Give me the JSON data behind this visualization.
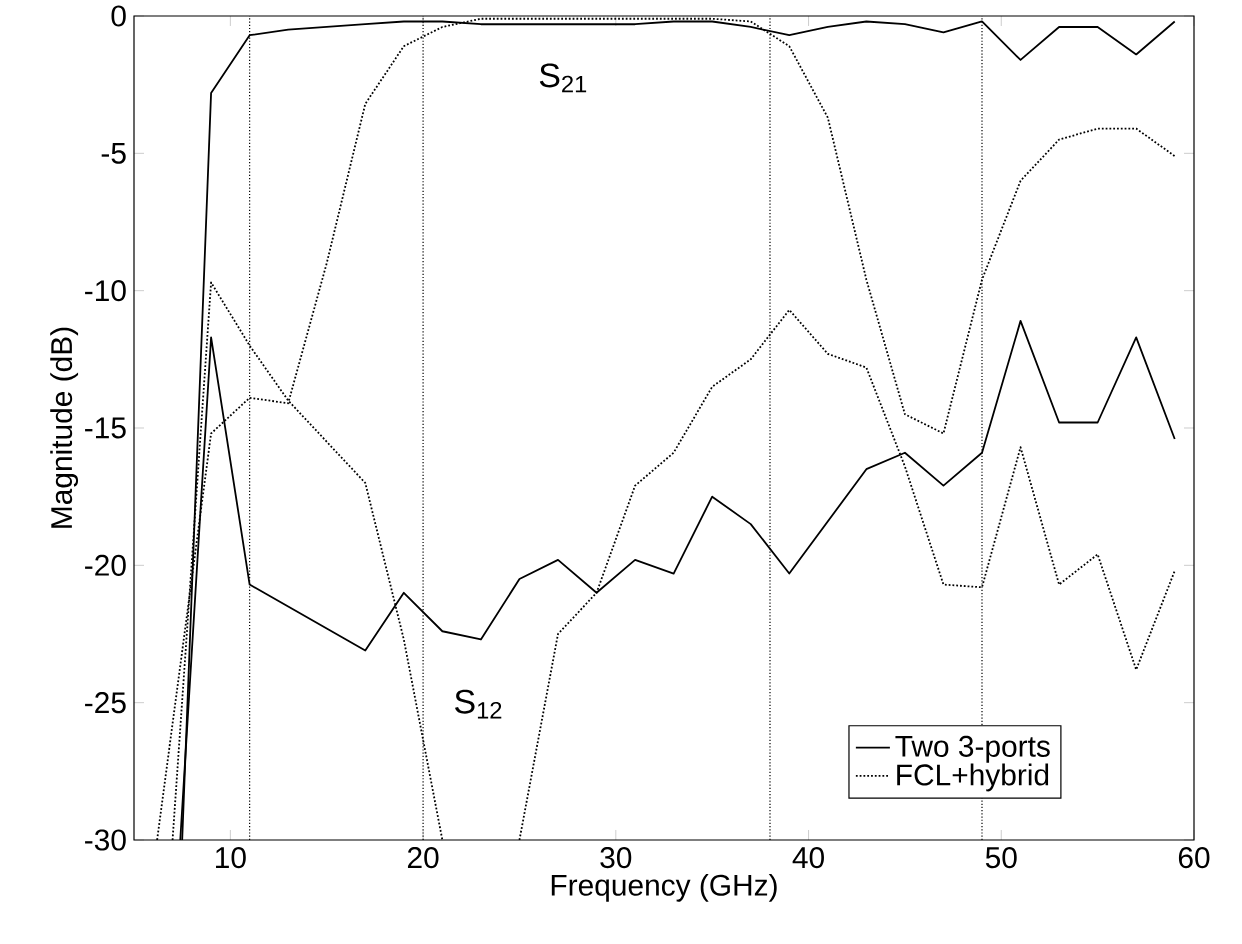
{
  "chart_data": {
    "type": "line",
    "xlabel": "Frequency (GHz)",
    "ylabel": "Magnitude (dB)",
    "xlim": [
      5,
      60
    ],
    "ylim": [
      -30,
      0
    ],
    "xticks": [
      10,
      20,
      30,
      40,
      50,
      60
    ],
    "yticks": [
      -30,
      -25,
      -20,
      -15,
      -10,
      -5,
      0
    ],
    "legend": "bottom right",
    "series": [
      {
        "name": "Two 3-ports",
        "color": "#000000",
        "line_style": "solid",
        "x": [
          7.5,
          9,
          11,
          13,
          15,
          17,
          19,
          21,
          23,
          25,
          27,
          29,
          31,
          33,
          35,
          37,
          39,
          41,
          43,
          45,
          47,
          49,
          51,
          53,
          55,
          57,
          59
        ],
        "values": [
          -30,
          -2.8,
          -0.7,
          -0.5,
          -0.4,
          -0.3,
          -0.2,
          -0.2,
          -0.3,
          -0.3,
          -0.3,
          -0.3,
          -0.3,
          -0.2,
          -0.2,
          -0.4,
          -0.7,
          -0.4,
          -0.2,
          -0.3,
          -0.6,
          -0.2,
          -1.6,
          -0.4,
          -0.4,
          -1.4,
          -0.2
        ]
      },
      {
        "color": "#000000",
        "line_style": "solid",
        "x": [
          7.4,
          9,
          11,
          13,
          15,
          17,
          19,
          21,
          23,
          25,
          27,
          29,
          31,
          33,
          35,
          37,
          39,
          41,
          43,
          45,
          47,
          49,
          51,
          53,
          55,
          57,
          59
        ],
        "values": [
          -30,
          -11.7,
          -20.7,
          -21.5,
          -22.3,
          -23.1,
          -21,
          -22.4,
          -22.7,
          -20.5,
          -19.8,
          -21,
          -19.8,
          -20.3,
          -17.5,
          -18.5,
          -20.3,
          -18.4,
          -16.5,
          -15.9,
          -17.1,
          -15.9,
          -11.1,
          -14.8,
          -14.8,
          -11.7,
          -15.4
        ]
      },
      {
        "name": "FCL+hybrid",
        "color": "#000000",
        "line_style": "dotted",
        "x": [
          6.2,
          9,
          11,
          13,
          15,
          17,
          19,
          21,
          23,
          25,
          27,
          29,
          31,
          33,
          35,
          37,
          39,
          41,
          43,
          45,
          47,
          49,
          51,
          53,
          55,
          57,
          59
        ],
        "values": [
          -30,
          -15.2,
          -13.9,
          -14.1,
          -9,
          -3.2,
          -1.1,
          -0.4,
          -0.1,
          -0.1,
          -0.1,
          -0.1,
          -0.1,
          -0.1,
          -0.1,
          -0.2,
          -1.1,
          -3.7,
          -9.6,
          -14.5,
          -15.2,
          -9.6,
          -6,
          -4.5,
          -4.1,
          -4.1,
          -5.1
        ]
      },
      {
        "color": "#000000",
        "line_style": "dotted",
        "x": [
          7,
          9,
          11,
          13,
          15,
          17,
          19,
          21,
          23,
          25,
          27,
          29,
          31,
          33,
          35,
          37,
          39,
          41,
          43,
          45,
          47,
          49,
          51,
          53,
          55,
          57,
          59
        ],
        "values": [
          -30,
          -9.7,
          -12,
          -14,
          -15.5,
          -17,
          -22.7,
          -30,
          null,
          -30,
          -22.5,
          -21,
          -17.1,
          -15.9,
          -13.5,
          -12.5,
          -10.7,
          -12.3,
          -12.8,
          -16.4,
          -20.7,
          -20.8,
          -15.7,
          -20.7,
          -19.6,
          -23.8,
          -20.2
        ]
      }
    ],
    "ref_lines": [
      {
        "axis": "x",
        "value": 11,
        "line_style": "dotted"
      },
      {
        "axis": "x",
        "value": 20,
        "line_style": "dotted"
      },
      {
        "axis": "x",
        "value": 38,
        "line_style": "dotted"
      },
      {
        "axis": "x",
        "value": 49,
        "line_style": "dotted"
      }
    ],
    "annotations": [
      "S$_{21}$",
      "S$_{12}$"
    ]
  }
}
